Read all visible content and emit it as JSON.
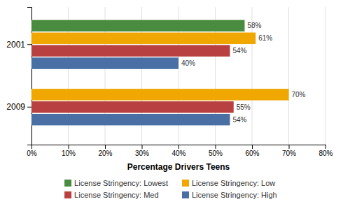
{
  "chart_data": {
    "type": "bar",
    "orientation": "horizontal",
    "categories": [
      "2001",
      "2009"
    ],
    "series": [
      {
        "name": "License Stringency: Lowest",
        "color": "#4a8c3f",
        "values": [
          58,
          null
        ],
        "value_labels": [
          "58%",
          null
        ]
      },
      {
        "name": "License Stringency: Low",
        "color": "#f0a800",
        "values": [
          61,
          70
        ],
        "value_labels": [
          "61%",
          "70%"
        ]
      },
      {
        "name": "License Stringency: Med",
        "color": "#b94040",
        "values": [
          54,
          55
        ],
        "value_labels": [
          "54%",
          "55%"
        ]
      },
      {
        "name": "License Stringency: High",
        "color": "#4a6fa5",
        "values": [
          40,
          54
        ],
        "value_labels": [
          "40%",
          "54%"
        ]
      }
    ],
    "xlabel": "Percentage Drivers Teens",
    "xlim": [
      0,
      80
    ],
    "xticks": [
      {
        "value": 0,
        "label": "0%"
      },
      {
        "value": 10,
        "label": "10%"
      },
      {
        "value": 20,
        "label": "20%"
      },
      {
        "value": 30,
        "label": "30%"
      },
      {
        "value": 40,
        "label": "40%"
      },
      {
        "value": 50,
        "label": "50%"
      },
      {
        "value": 60,
        "label": "60%"
      },
      {
        "value": 70,
        "label": "70%"
      },
      {
        "value": 80,
        "label": "80%"
      }
    ],
    "grid": true,
    "data_labels": true,
    "legend": "bottom"
  }
}
